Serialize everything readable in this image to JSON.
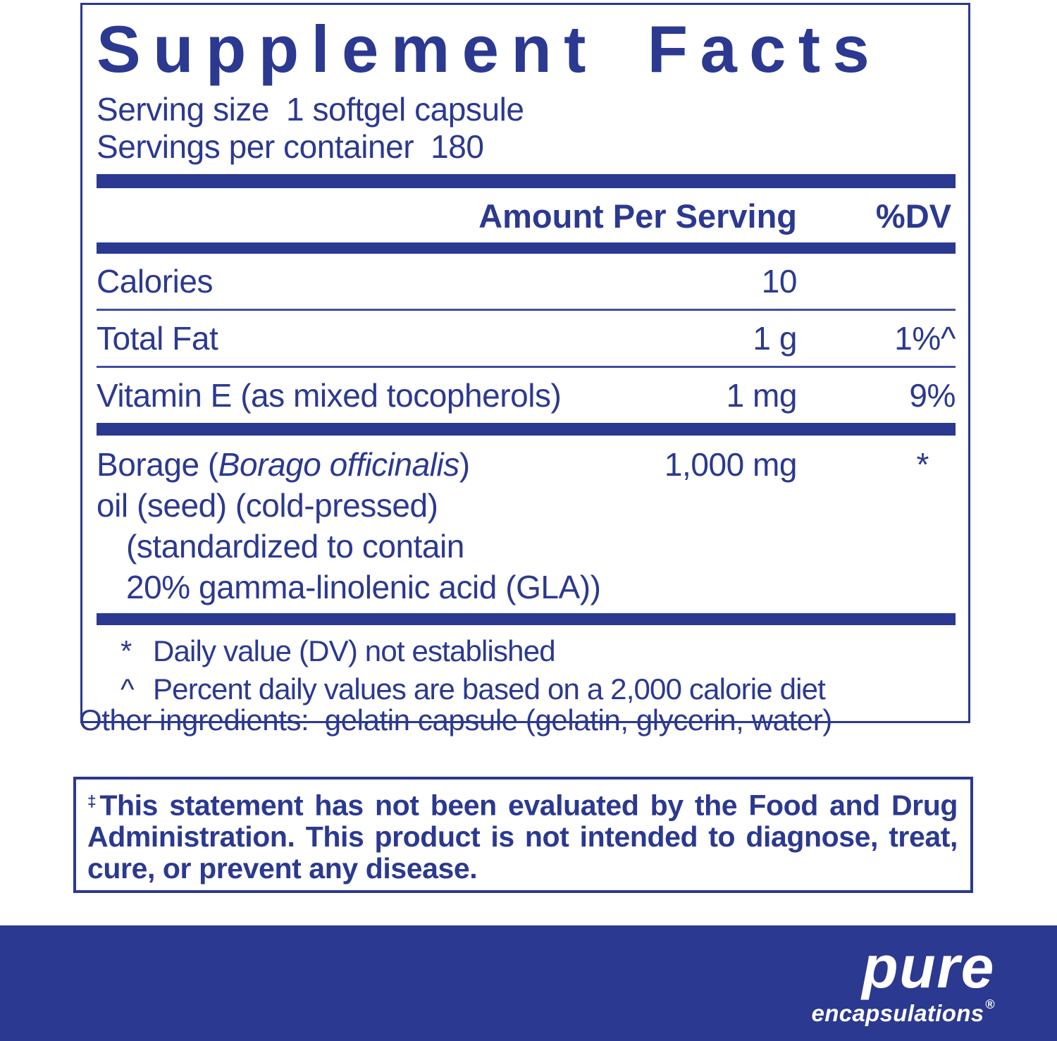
{
  "colors": {
    "navy": "#2b3990",
    "white": "#ffffff"
  },
  "label": {
    "title": "Supplement Facts",
    "serving_size_label": "Serving size",
    "serving_size_value": "1 softgel capsule",
    "servings_per_container_label": "Servings per container",
    "servings_per_container_value": "180",
    "header": {
      "amount": "Amount Per Serving",
      "dv": "%DV"
    },
    "rows": [
      {
        "name": "Calories",
        "amount": "10",
        "dv": ""
      },
      {
        "name": "Total Fat",
        "amount": "1 g",
        "dv": "1%^"
      },
      {
        "name": "Vitamin E (as mixed tocopherols)",
        "amount": "1 mg",
        "dv": "9%"
      }
    ],
    "borage": {
      "name_prefix": "Borage (",
      "name_italic": "Borago officinalis",
      "name_suffix": ")",
      "line2": "oil (seed) (cold-pressed)",
      "line3": "(standardized to contain",
      "line4": "20% gamma-linolenic acid (GLA))",
      "amount": "1,000 mg",
      "dv": "*"
    },
    "footnotes": [
      {
        "marker": "*",
        "text": "Daily value (DV) not established"
      },
      {
        "marker": "^",
        "text": "Percent daily values are based on a 2,000 calorie diet"
      }
    ],
    "other_ingredients": "Other ingredients:  gelatin capsule (gelatin, glycerin, water)"
  },
  "disclaimer": {
    "marker": "‡",
    "text": "This statement has not been evaluated by the Food and Drug Administration. This product is not intended to diagnose, treat, cure, or prevent any disease."
  },
  "brand": {
    "name": "pure",
    "subname": "encapsulations",
    "registered": "®"
  }
}
